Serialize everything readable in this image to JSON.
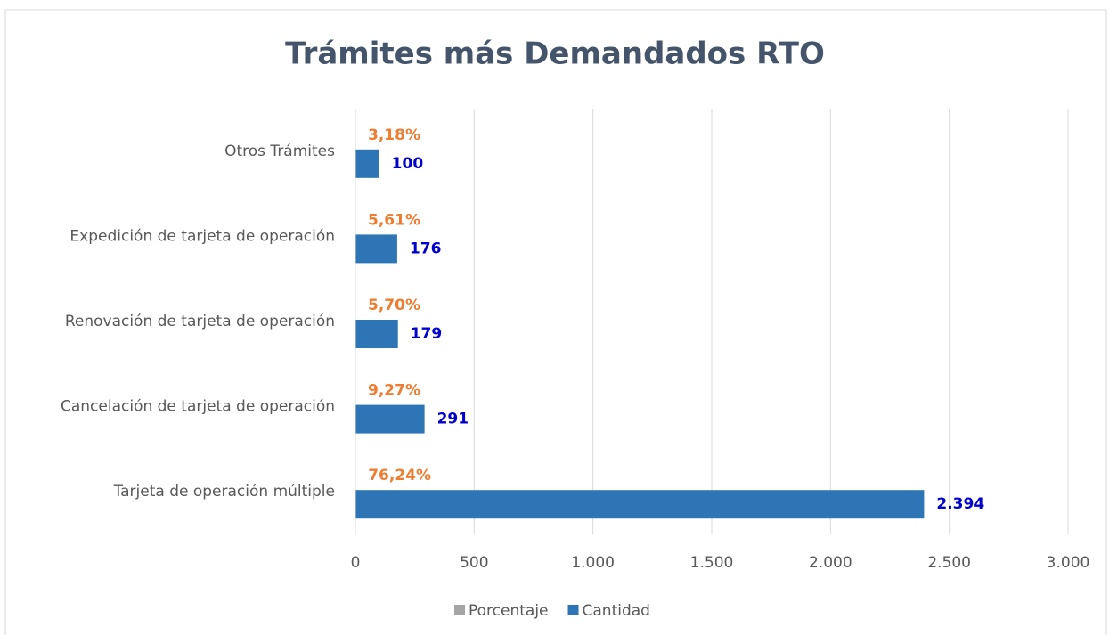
{
  "chart_data": {
    "type": "bar",
    "orientation": "horizontal",
    "title": "Trámites más Demandados RTO",
    "categories": [
      "Tarjeta de operación múltiple",
      "Cancelación de tarjeta de operación",
      "Renovación de tarjeta de operación",
      "Expedición de tarjeta de operación",
      "Otros Trámites"
    ],
    "series": [
      {
        "name": "Porcentaje",
        "color": "#a5a5a5",
        "label_color": "#ed7d31",
        "values": [
          0.7624,
          0.0927,
          0.057,
          0.0561,
          0.0318
        ],
        "value_labels": [
          "76,24%",
          "9,27%",
          "5,70%",
          "5,61%",
          "3,18%"
        ]
      },
      {
        "name": "Cantidad",
        "color": "#2e75b6",
        "label_color": "#0000cc",
        "values": [
          2394,
          291,
          179,
          176,
          100
        ],
        "value_labels": [
          "2.394",
          "291",
          "179",
          "176",
          "100"
        ]
      }
    ],
    "xlim": [
      0,
      3000
    ],
    "xticks": [
      0,
      500,
      {
        "value": 1000,
        "label": "1.000"
      },
      {
        "value": 1500,
        "label": "1.500"
      },
      {
        "value": 2000,
        "label": "2.000"
      },
      {
        "value": 2500,
        "label": "2.500"
      },
      {
        "value": 3000,
        "label": "3.000"
      }
    ],
    "grid": true,
    "legend": "bottom"
  }
}
